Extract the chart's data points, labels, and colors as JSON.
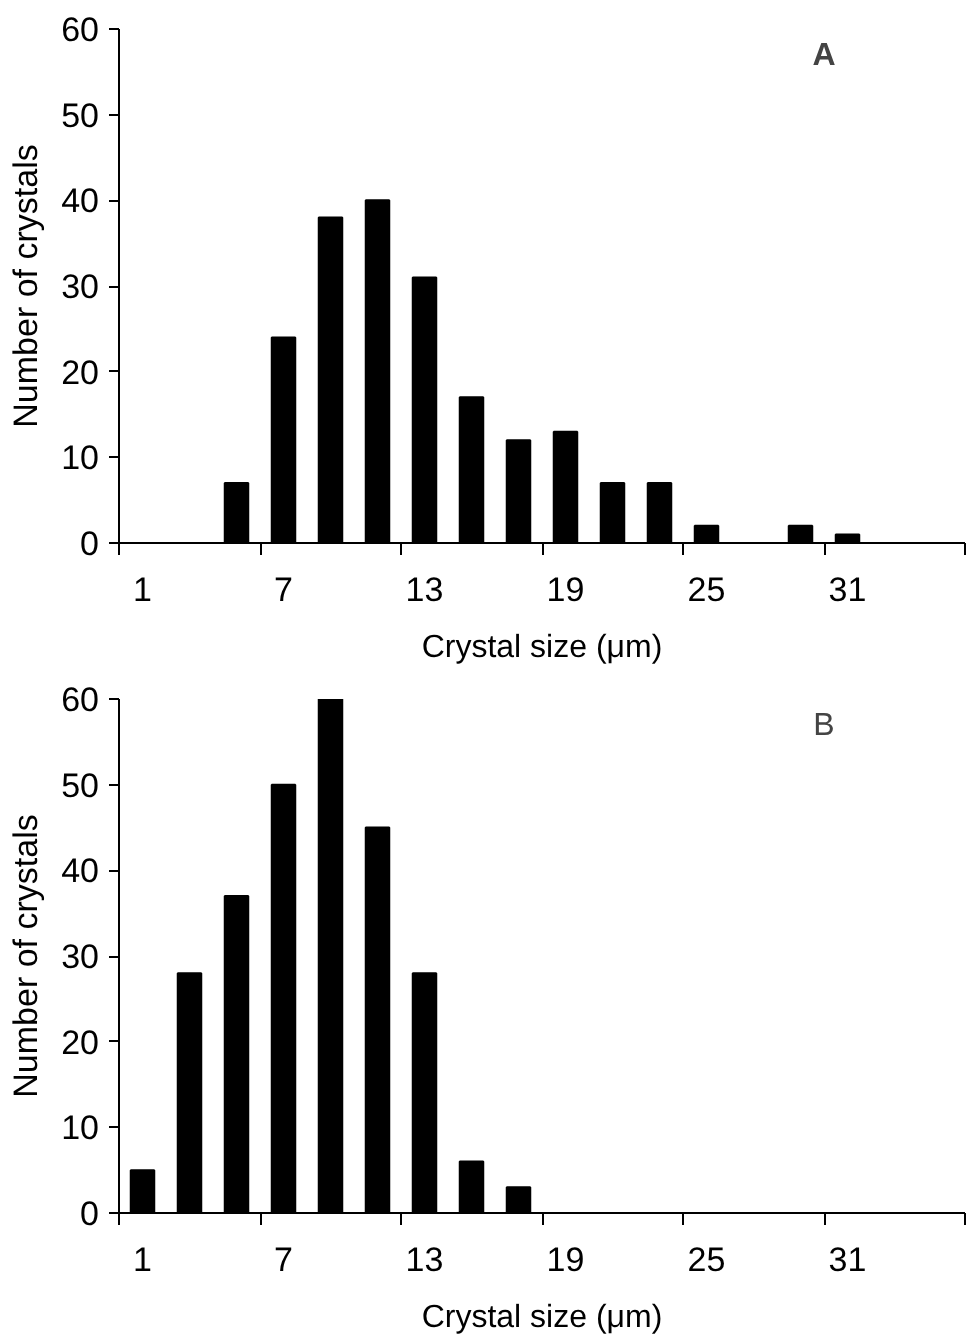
{
  "chart_data": [
    {
      "type": "bar",
      "annotations": [
        "A"
      ],
      "xlabel": "Crystal size (μm)",
      "ylabel": "Number of crystals",
      "categories": [
        "1",
        null,
        null,
        "7",
        null,
        null,
        "13",
        null,
        null,
        "19",
        null,
        null,
        "25",
        null,
        null,
        "31",
        null,
        null
      ],
      "values": [
        0,
        0,
        7,
        24,
        38,
        40,
        31,
        17,
        12,
        13,
        7,
        7,
        2,
        0,
        2,
        1,
        0,
        0
      ],
      "color": "#000000",
      "ylim": [
        0,
        60
      ],
      "yticks": [
        0,
        10,
        20,
        30,
        40,
        50,
        60
      ],
      "grid": false
    },
    {
      "type": "bar",
      "annotations": [
        "B"
      ],
      "xlabel": "Crystal size (μm)",
      "ylabel": "Number of crystals",
      "categories": [
        "1",
        null,
        null,
        "7",
        null,
        null,
        "13",
        null,
        null,
        "19",
        null,
        null,
        "25",
        null,
        null,
        "31",
        null,
        null
      ],
      "values": [
        5,
        28,
        37,
        50,
        60,
        45,
        28,
        6,
        3,
        0,
        0,
        0,
        0,
        0,
        0,
        0,
        0,
        0
      ],
      "color": "#000000",
      "ylim": [
        0,
        60
      ],
      "yticks": [
        0,
        10,
        20,
        30,
        40,
        50,
        60
      ],
      "grid": false
    }
  ]
}
